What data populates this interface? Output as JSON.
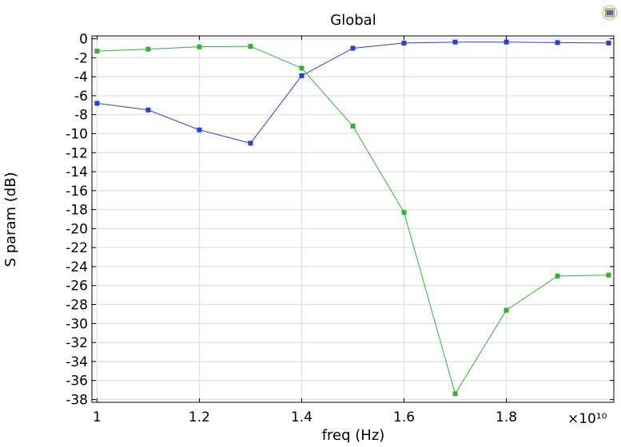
{
  "chart_data": {
    "type": "line",
    "title": "Global",
    "xlabel": "freq (Hz)",
    "ylabel": "S param (dB)",
    "x_multiplier_label": "×10¹⁰",
    "xlim": [
      0.99,
      2.01
    ],
    "ylim": [
      -38.3,
      0.3
    ],
    "x_ticks": [
      1,
      1.2,
      1.4,
      1.6,
      1.8
    ],
    "x_tick_labels": [
      "1",
      "1.2",
      "1.4",
      "1.6",
      "1.8"
    ],
    "y_ticks": [
      0,
      -2,
      -4,
      -6,
      -8,
      -10,
      -12,
      -14,
      -16,
      -18,
      -20,
      -22,
      -24,
      -26,
      -28,
      -30,
      -32,
      -34,
      -36,
      -38
    ],
    "y_tick_labels": [
      "0",
      "-2",
      "-4",
      "-6",
      "-8",
      "-10",
      "-12",
      "-14",
      "-16",
      "-18",
      "-20",
      "-22",
      "-24",
      "-26",
      "-28",
      "-30",
      "-32",
      "-34",
      "-36",
      "-38"
    ],
    "grid": true,
    "x": [
      1.0,
      1.1,
      1.2,
      1.3,
      1.4,
      1.5,
      1.6,
      1.7,
      1.8,
      1.9,
      2.0
    ],
    "series": [
      {
        "color": "#2041e0",
        "values": [
          -6.8,
          -7.5,
          -9.6,
          -11.0,
          -3.9,
          -1.0,
          -0.45,
          -0.35,
          -0.35,
          -0.4,
          -0.45
        ]
      },
      {
        "color": "#2db52d",
        "values": [
          -1.3,
          -1.1,
          -0.85,
          -0.8,
          -3.1,
          -9.2,
          -18.3,
          -37.4,
          -28.6,
          -25.0,
          -24.9
        ]
      }
    ]
  },
  "toolbar": {
    "icon": "window-icon"
  }
}
